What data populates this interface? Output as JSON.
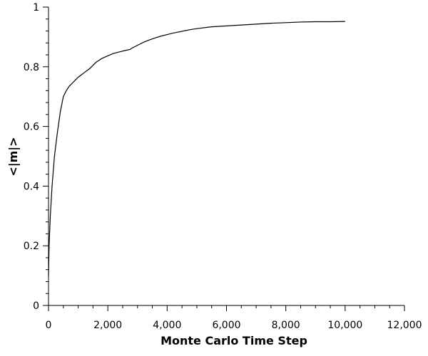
{
  "chart_data": {
    "type": "line",
    "title": "",
    "xlabel": "Monte Carlo Time Step",
    "ylabel": "<|m|>",
    "xlim": [
      0,
      12000
    ],
    "ylim": [
      0,
      1
    ],
    "grid": false,
    "x_ticks": [
      0,
      2000,
      4000,
      6000,
      8000,
      10000,
      12000
    ],
    "x_tick_labels": [
      "0",
      "2,000",
      "4,000",
      "6,000",
      "8,000",
      "10,000",
      "12,000"
    ],
    "y_ticks": [
      0,
      0.2,
      0.4,
      0.6,
      0.8,
      1
    ],
    "y_tick_labels": [
      "0",
      "0.2",
      "0.4",
      "0.6",
      "0.8",
      "1"
    ],
    "series": [
      {
        "color": "#000000",
        "x": [
          0,
          20,
          60,
          120,
          200,
          300,
          400,
          500,
          600,
          700,
          800,
          900,
          1000,
          1200,
          1400,
          1600,
          1800,
          2000,
          2200,
          2400,
          2600,
          2750,
          2800,
          3000,
          3200,
          3400,
          3600,
          3800,
          4000,
          4200,
          4400,
          4600,
          4800,
          5000,
          5500,
          6000,
          6500,
          7000,
          7500,
          8000,
          8500,
          9000,
          9500,
          10000
        ],
        "y": [
          0.1,
          0.2,
          0.3,
          0.4,
          0.5,
          0.58,
          0.65,
          0.7,
          0.72,
          0.735,
          0.745,
          0.755,
          0.765,
          0.78,
          0.795,
          0.815,
          0.828,
          0.837,
          0.845,
          0.85,
          0.855,
          0.858,
          0.862,
          0.872,
          0.882,
          0.89,
          0.897,
          0.903,
          0.908,
          0.913,
          0.917,
          0.921,
          0.925,
          0.928,
          0.934,
          0.937,
          0.94,
          0.943,
          0.946,
          0.948,
          0.95,
          0.951,
          0.951,
          0.952
        ]
      }
    ]
  }
}
